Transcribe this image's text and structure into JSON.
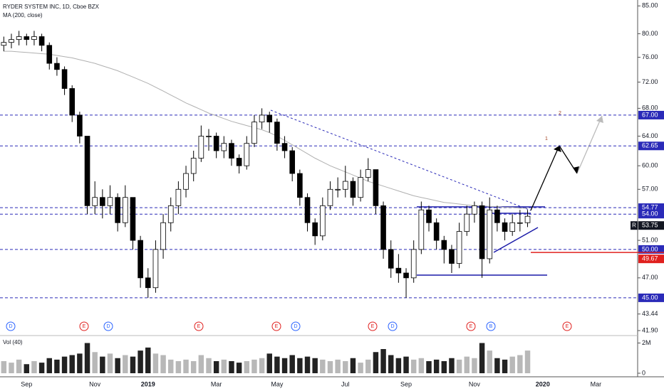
{
  "chart_data": {
    "type": "candlestick",
    "title": "RYDER SYSTEM INC, 1D, Cboe BZX",
    "ma_label": "MA (200, close)",
    "volume_label": "Vol (40)",
    "log_scale": true,
    "categories": [
      null,
      null,
      null,
      "Sep",
      null,
      null,
      null,
      null,
      null,
      null,
      null,
      null,
      "Nov",
      null,
      null,
      null,
      null,
      null,
      null,
      "2019",
      null,
      null,
      null,
      null,
      null,
      null,
      null,
      null,
      "Mar",
      null,
      null,
      null,
      null,
      null,
      null,
      null,
      "May",
      null,
      null,
      null,
      null,
      null,
      null,
      null,
      null,
      "Jul",
      null,
      null,
      null,
      null,
      null,
      null,
      null,
      "Sep",
      null,
      null,
      null,
      null,
      null,
      null,
      null,
      null,
      "Nov",
      null,
      null,
      null,
      null,
      null,
      null,
      null,
      null,
      "2020",
      null,
      null,
      null,
      null,
      null,
      null,
      "Mar",
      null,
      null,
      null,
      null,
      null
    ],
    "open": [
      78,
      78.5,
      79,
      79.5,
      79,
      79.5,
      78,
      75,
      74,
      71,
      67,
      64,
      55,
      56,
      55,
      56,
      53,
      56,
      51,
      47,
      46,
      50,
      53,
      55,
      57,
      59,
      61,
      64,
      64,
      62,
      63,
      61,
      60,
      63,
      66,
      67,
      66,
      63,
      62,
      59,
      56,
      53,
      51.5,
      55,
      57,
      57,
      58,
      56,
      58.5,
      59.5,
      55,
      50,
      48,
      47.5,
      47,
      50,
      54.5,
      53,
      51,
      50,
      48.5,
      52,
      54,
      55,
      49,
      54.5,
      53,
      52,
      53,
      53,
      null,
      null,
      null,
      null,
      null,
      null,
      null,
      null,
      null,
      null,
      null,
      null,
      null,
      null
    ],
    "high": [
      79.5,
      80,
      80.5,
      80,
      80.5,
      80,
      78.5,
      76,
      74.5,
      71.5,
      67.5,
      64,
      58,
      57,
      57.5,
      56.5,
      57.5,
      56,
      51.5,
      48,
      51,
      54,
      56,
      58,
      60,
      62,
      65.5,
      65,
      64.5,
      64,
      63.5,
      61.5,
      64,
      67,
      68,
      67.5,
      66.5,
      64,
      62.5,
      59.5,
      56.5,
      53.5,
      56,
      58,
      58.5,
      60,
      58.5,
      59.5,
      61,
      59.5,
      55.5,
      51,
      49.5,
      48,
      51,
      55.5,
      55,
      53.5,
      51.5,
      50.5,
      53,
      55,
      55.5,
      55.5,
      56,
      55,
      53.5,
      54,
      54.5,
      54.5,
      null,
      null,
      null,
      null,
      null,
      null,
      null,
      null,
      null,
      null,
      null,
      null,
      null,
      null
    ],
    "low": [
      77,
      77.5,
      78,
      78,
      78,
      77,
      74,
      73,
      70,
      66,
      63,
      54,
      54,
      53.5,
      54,
      52,
      52.5,
      50,
      46,
      45,
      45.5,
      49,
      52,
      54,
      56,
      58,
      60.5,
      62,
      61,
      61,
      60,
      59,
      59.5,
      62.5,
      65,
      64.5,
      62,
      61,
      58,
      55,
      52,
      50.5,
      51,
      54.5,
      56,
      56,
      55,
      55.5,
      58,
      54,
      49,
      47,
      46.5,
      45,
      46.5,
      49.5,
      52,
      50,
      48.5,
      47.5,
      48,
      51.5,
      53,
      47,
      48.5,
      52,
      51,
      51.5,
      52,
      52.5,
      null,
      null,
      null,
      null,
      null,
      null,
      null,
      null,
      null,
      null,
      null,
      null,
      null,
      null
    ],
    "close": [
      78.5,
      79,
      79.5,
      79,
      79.5,
      78,
      75,
      74,
      71,
      67,
      64,
      55,
      56,
      55,
      56,
      53,
      56,
      51,
      47,
      46,
      50,
      53,
      55,
      57,
      59,
      61,
      64,
      64,
      62,
      63,
      61,
      60,
      63,
      66,
      67,
      66,
      63,
      62,
      59,
      56,
      53,
      51.5,
      55,
      57,
      57,
      58,
      56,
      58.5,
      59.5,
      55,
      50,
      48,
      47.5,
      47,
      50,
      54.5,
      53,
      51,
      50,
      48.5,
      52,
      54,
      55,
      49,
      54.5,
      53,
      52,
      53,
      53,
      53.75,
      null,
      null,
      null,
      null,
      null,
      null,
      null,
      null,
      null,
      null,
      null,
      null,
      null,
      null
    ],
    "ma_values": [
      77,
      77,
      76.9,
      76.8,
      76.7,
      76.6,
      76.5,
      76.3,
      76.1,
      75.9,
      75.6,
      75.3,
      75,
      74.6,
      74.2,
      73.8,
      73.3,
      72.8,
      72.3,
      71.8,
      71.2,
      70.6,
      70,
      69.4,
      68.8,
      68.3,
      67.8,
      67.3,
      66.9,
      66.5,
      66.1,
      65.8,
      65.5,
      65.2,
      64.9,
      64.5,
      64,
      63.4,
      62.8,
      62.2,
      61.6,
      61,
      60.5,
      60,
      59.6,
      59.2,
      58.8,
      58.4,
      58,
      57.7,
      57.4,
      57.1,
      56.8,
      56.5,
      56.2,
      56,
      55.8,
      55.6,
      55.4,
      55.3,
      55.2,
      55.1,
      55,
      55,
      54.9,
      54.9,
      54.8,
      54.8,
      54.7,
      54.7,
      null,
      null,
      null,
      null,
      null,
      null,
      null,
      null,
      null,
      null,
      null,
      null,
      null,
      null
    ],
    "volume": [
      0.8,
      0.7,
      0.9,
      0.6,
      0.8,
      0.7,
      1.0,
      0.9,
      1.1,
      1.2,
      1.3,
      2.0,
      1.4,
      1.1,
      1.3,
      1.0,
      1.2,
      1.1,
      1.5,
      1.7,
      1.3,
      1.2,
      0.9,
      0.8,
      0.9,
      0.8,
      1.2,
      1.0,
      0.8,
      0.9,
      0.8,
      0.7,
      0.8,
      0.9,
      1.0,
      1.3,
      1.1,
      1.0,
      1.2,
      1.0,
      1.1,
      1.0,
      0.9,
      0.8,
      0.9,
      0.8,
      1.0,
      0.7,
      0.9,
      1.4,
      1.6,
      1.2,
      1.0,
      1.1,
      0.9,
      1.0,
      0.8,
      0.9,
      0.8,
      1.0,
      0.9,
      1.1,
      1.0,
      2.0,
      1.5,
      1.0,
      0.9,
      1.1,
      1.2,
      1.5,
      null,
      null,
      null,
      null,
      null,
      null,
      null,
      null,
      null,
      null,
      null,
      null,
      null,
      null
    ],
    "ylim": [
      41.9,
      86.1
    ],
    "yticks": [
      {
        "value": 85,
        "label": "85.00"
      },
      {
        "value": 80,
        "label": "80.00"
      },
      {
        "value": 76,
        "label": "76.00"
      },
      {
        "value": 72,
        "label": "72.00"
      },
      {
        "value": 68,
        "label": "68.00"
      },
      {
        "value": 64,
        "label": "64.00"
      },
      {
        "value": 60,
        "label": "60.00"
      },
      {
        "value": 57,
        "label": "57.00"
      },
      {
        "value": 51,
        "label": "51.00"
      },
      {
        "value": 47,
        "label": "47.00"
      },
      43.44,
      {
        "value": 41.9,
        "label": "41.90"
      }
    ],
    "volume_ylim": [
      0,
      2.4
    ],
    "volume_yticks": [
      {
        "value": 2,
        "label": "2M"
      },
      0
    ],
    "levels": [
      {
        "value": 67,
        "label": "67.00"
      },
      {
        "value": 62.65,
        "label": "62.65"
      },
      {
        "value": 54.77,
        "label": "54.77"
      },
      {
        "value": 54,
        "label": "54.00"
      },
      {
        "value": 50,
        "label": "50.00"
      },
      {
        "value": 45,
        "label": "45.00"
      }
    ],
    "last_price": {
      "value": 53.75,
      "label": "53.75"
    },
    "stop_price": {
      "value": 49.67,
      "label": "49.67"
    },
    "price_marker": "R",
    "projection_labels": [
      "1",
      "2"
    ],
    "events": [
      "D",
      "E",
      "D",
      "E",
      "E",
      "D",
      "E",
      "D",
      "E",
      "B",
      "E"
    ],
    "up_color": "#ffffff",
    "down_color": "#000000",
    "ma_color": "#b0b0b0",
    "level_color": "#2a2ab8",
    "stop_color": "#e0201e"
  }
}
